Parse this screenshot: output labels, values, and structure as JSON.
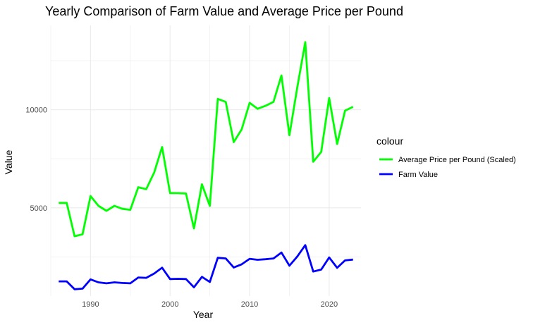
{
  "chart_data": {
    "type": "line",
    "title": "Yearly Comparison of Farm Value and Average Price per Pound",
    "xlabel": "Year",
    "ylabel": "Value",
    "xlim": [
      1985,
      2024
    ],
    "ylim": [
      500,
      14300
    ],
    "x_ticks": [
      1990,
      2000,
      2010,
      2020
    ],
    "x_tick_labels": [
      "1990",
      "2000",
      "2010",
      "2020"
    ],
    "y_ticks": [
      5000,
      10000
    ],
    "y_tick_labels": [
      "5000",
      "10000"
    ],
    "grid": true,
    "legend_title": "colour",
    "legend_position": "right",
    "x": [
      1986,
      1987,
      1988,
      1989,
      1990,
      1991,
      1992,
      1993,
      1994,
      1995,
      1996,
      1997,
      1998,
      1999,
      2000,
      2001,
      2002,
      2003,
      2004,
      2005,
      2006,
      2007,
      2008,
      2009,
      2010,
      2011,
      2012,
      2013,
      2014,
      2015,
      2016,
      2017,
      2018,
      2019,
      2020,
      2021,
      2022,
      2023
    ],
    "series": [
      {
        "name": "Average Price per Pound (Scaled)",
        "color": "#00ff00",
        "values": [
          5250,
          5250,
          3550,
          3650,
          5600,
          5100,
          4850,
          5100,
          4950,
          4900,
          6050,
          5950,
          6800,
          8100,
          5750,
          5750,
          5730,
          3950,
          6200,
          5100,
          10550,
          10400,
          8350,
          9000,
          10350,
          10050,
          10200,
          10400,
          11750,
          8700,
          11150,
          13450,
          7350,
          7850,
          10600,
          8250,
          9950,
          10150
        ]
      },
      {
        "name": "Farm Value",
        "color": "#0000ff",
        "values": [
          1250,
          1250,
          850,
          880,
          1350,
          1200,
          1150,
          1200,
          1170,
          1150,
          1450,
          1430,
          1650,
          1950,
          1370,
          1380,
          1370,
          950,
          1480,
          1220,
          2450,
          2420,
          1960,
          2120,
          2400,
          2350,
          2380,
          2420,
          2720,
          2050,
          2520,
          3100,
          1750,
          1850,
          2470,
          1940,
          2320,
          2360
        ]
      }
    ]
  }
}
